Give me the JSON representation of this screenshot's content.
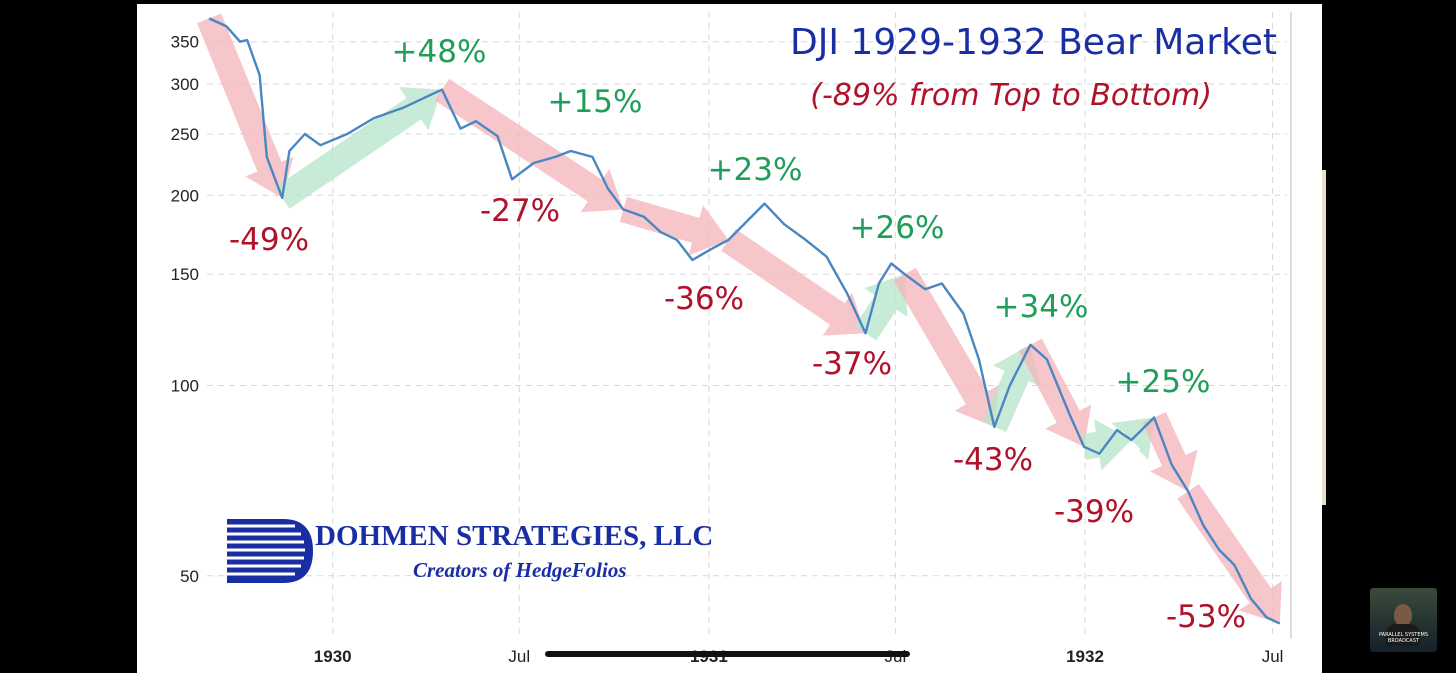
{
  "colors": {
    "line": "#4a86c2",
    "down_arrow": "#f4b6bb",
    "up_arrow": "#b8e6cc",
    "title": "#1a2ea3",
    "subtitle": "#b0122a",
    "up_label": "#1f9e5a",
    "down_label": "#b0122a",
    "grid": "#d8d8d8"
  },
  "chart_data": {
    "type": "line",
    "title": "DJI 1929-1932 Bear Market",
    "subtitle": "(-89% from Top to Bottom)",
    "y_scale": "log",
    "ylim": [
      40,
      390
    ],
    "xlim": [
      "1929-09-01",
      "1932-07-15"
    ],
    "y_ticks": [
      350,
      300,
      250,
      200,
      150,
      100,
      50
    ],
    "x_ticks": [
      {
        "date": "1930-01-01",
        "label": "1930",
        "major": true
      },
      {
        "date": "1930-07-01",
        "label": "Jul",
        "major": false
      },
      {
        "date": "1931-01-01",
        "label": "1931",
        "major": true
      },
      {
        "date": "1931-07-01",
        "label": "Jul",
        "major": false
      },
      {
        "date": "1932-01-01",
        "label": "1932",
        "major": true
      },
      {
        "date": "1932-07-01",
        "label": "Jul",
        "major": false
      }
    ],
    "grid": true,
    "series": [
      {
        "x": [
          "1929-09-03",
          "1929-09-20",
          "1929-10-03",
          "1929-10-10",
          "1929-10-22",
          "1929-10-29",
          "1929-11-13",
          "1929-11-20",
          "1929-12-05",
          "1929-12-20",
          "1930-01-15",
          "1930-02-10",
          "1930-03-10",
          "1930-04-17",
          "1930-05-05",
          "1930-05-20",
          "1930-06-10",
          "1930-06-24",
          "1930-07-15",
          "1930-08-05",
          "1930-08-20",
          "1930-09-10",
          "1930-09-25",
          "1930-10-10",
          "1930-10-30",
          "1930-11-15",
          "1930-12-01",
          "1930-12-16",
          "1931-01-05",
          "1931-01-20",
          "1931-02-24",
          "1931-03-15",
          "1931-04-05",
          "1931-04-25",
          "1931-05-15",
          "1931-06-02",
          "1931-06-15",
          "1931-06-27",
          "1931-07-10",
          "1931-07-30",
          "1931-08-15",
          "1931-09-05",
          "1931-09-20",
          "1931-10-05",
          "1931-10-20",
          "1931-11-09",
          "1931-11-25",
          "1931-12-17",
          "1931-12-31",
          "1932-01-15",
          "1932-02-01",
          "1932-02-15",
          "1932-03-08",
          "1932-03-25",
          "1932-04-10",
          "1932-04-25",
          "1932-05-10",
          "1932-05-25",
          "1932-06-10",
          "1932-06-25",
          "1932-07-08"
        ],
        "y": [
          381,
          370,
          350,
          352,
          310,
          230,
          198,
          235,
          250,
          240,
          250,
          265,
          275,
          294,
          255,
          262,
          248,
          212,
          225,
          230,
          235,
          230,
          205,
          190,
          185,
          175,
          170,
          158,
          165,
          170,
          194,
          180,
          170,
          160,
          140,
          121,
          145,
          156,
          150,
          142,
          145,
          130,
          110,
          86,
          100,
          116,
          110,
          90,
          80,
          78,
          85,
          82,
          89,
          75,
          68,
          60,
          55,
          52,
          46,
          43,
          42
        ]
      }
    ],
    "up_moves": [
      "+48%",
      "+15%",
      "+23%",
      "+26%",
      "+34%",
      "+25%"
    ],
    "down_moves": [
      "-49%",
      "-27%",
      "-36%",
      "-37%",
      "-43%",
      "-39%",
      "-53%"
    ]
  },
  "branding": {
    "company": "DOHMEN STRATEGIES, LLC",
    "tagline": "Creators of HedgeFolios"
  }
}
